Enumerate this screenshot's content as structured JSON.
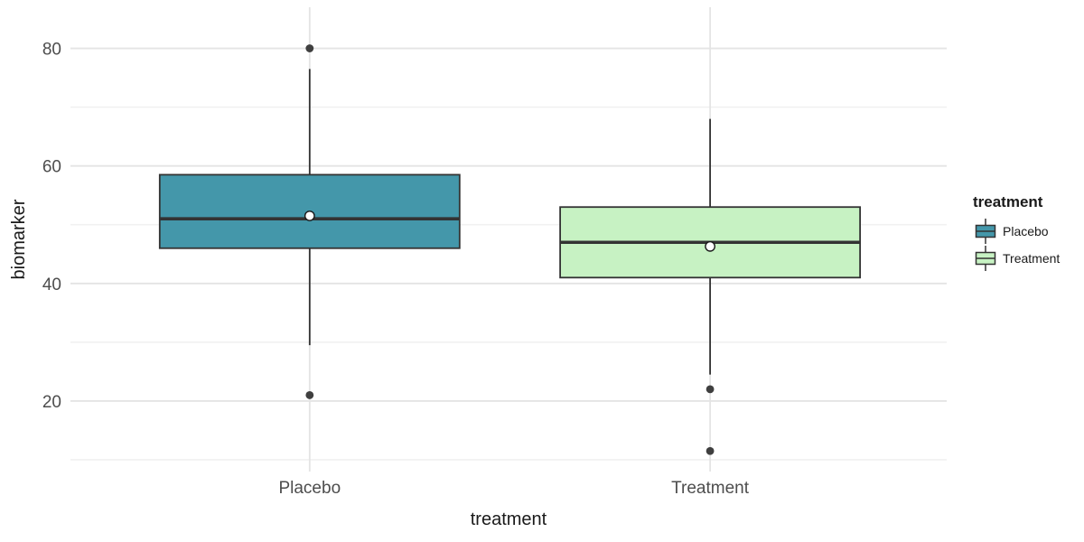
{
  "figure": {
    "background": "#FFFFFF"
  },
  "chart_data": {
    "type": "boxplot",
    "title": "",
    "xlabel": "treatment",
    "ylabel": "biomarker",
    "categories": [
      "Placebo",
      "Treatment"
    ],
    "y_major_ticks": [
      20,
      40,
      60,
      80
    ],
    "y_minor_ticks": [
      10,
      30,
      50,
      70
    ],
    "ylim": [
      8,
      87
    ],
    "grid": "on",
    "legend": {
      "title": "treatment",
      "position": "right",
      "entries": [
        {
          "label": "Placebo",
          "fill": "#4497AA"
        },
        {
          "label": "Treatment",
          "fill": "#C7F2C3"
        }
      ]
    },
    "series": [
      {
        "name": "Placebo",
        "fill": "#4497AA",
        "whisker_low": 29.5,
        "q1": 46,
        "median": 51,
        "q3": 58.5,
        "whisker_high": 76.5,
        "mean": 51.5,
        "outliers": [
          80,
          21
        ]
      },
      {
        "name": "Treatment",
        "fill": "#C7F2C3",
        "whisker_low": 24.5,
        "q1": 41,
        "median": 47,
        "q3": 53,
        "whisker_high": 68,
        "mean": 46.3,
        "outliers": [
          22,
          11.5
        ]
      }
    ],
    "colors": {
      "box_stroke": "#333333",
      "median_stroke": "#333333",
      "outlier_fill": "#3F3F3F",
      "mean_fill": "#FFFFFF",
      "mean_stroke": "#1A1A1A",
      "grid_major": "#E4E4E4",
      "grid_minor": "#F1F1F1",
      "tick_label": "#4D4D4D",
      "axis_title": "#1A1A1A"
    }
  }
}
